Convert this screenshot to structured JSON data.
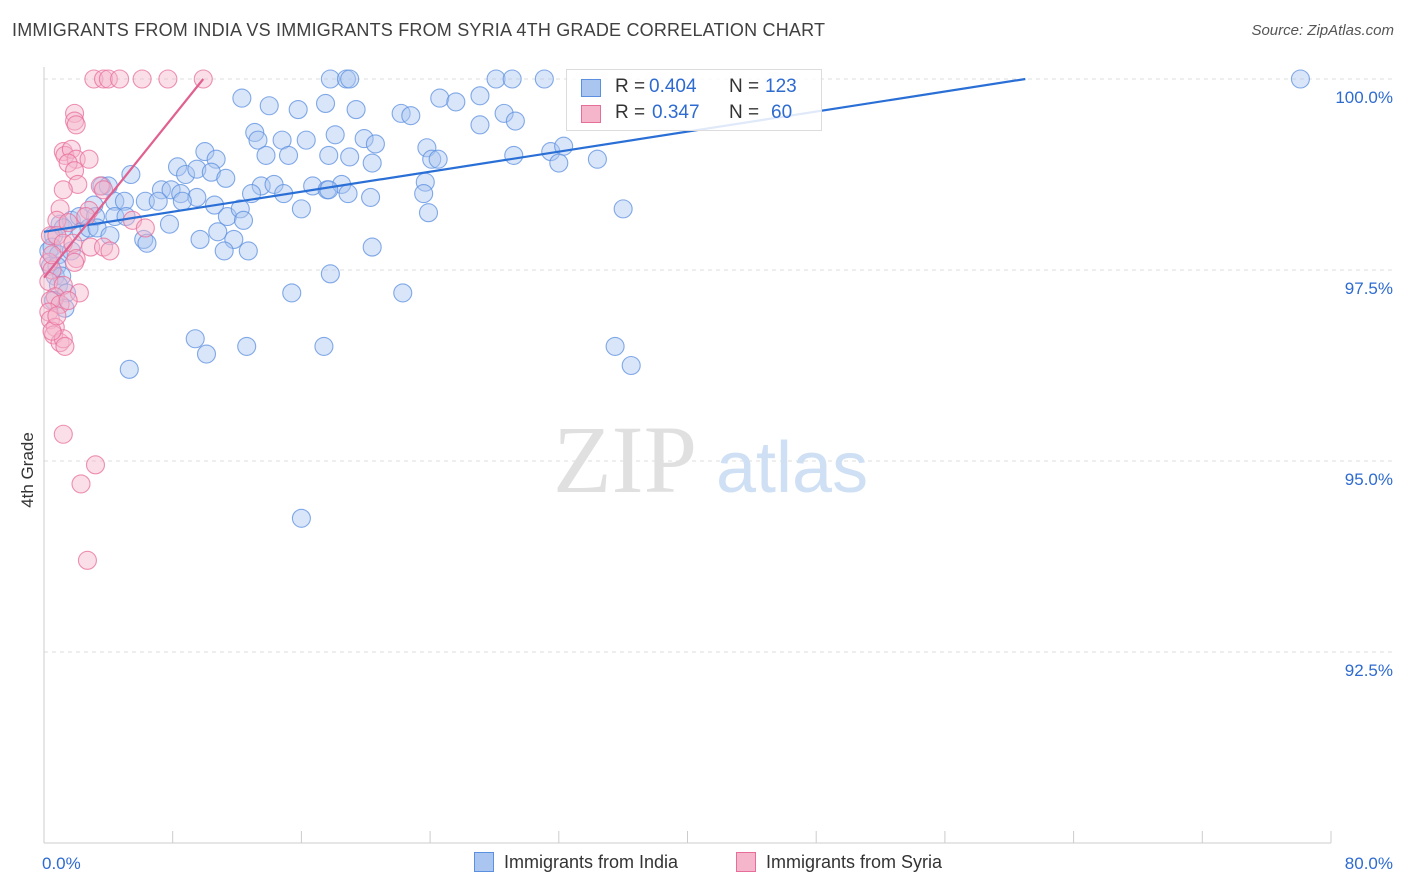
{
  "title": "IMMIGRANTS FROM INDIA VS IMMIGRANTS FROM SYRIA 4TH GRADE CORRELATION CHART",
  "source": "Source: ZipAtlas.com",
  "watermark": {
    "zip": "ZIP",
    "atlas": "atlas"
  },
  "colors": {
    "india": "#5b8fe0",
    "india_fill": "#aac6f0",
    "syria": "#e86e9a",
    "syria_fill": "#f5b6cc",
    "axis_label": "#2e6bd0",
    "grid": "#dddddd"
  },
  "legend": {
    "india": {
      "r_label": "R =",
      "r_value": "0.404",
      "n_label": "N =",
      "n_value": "123"
    },
    "syria": {
      "r_label": "R =",
      "r_value": "0.347",
      "n_label": "N =",
      "n_value": "60"
    }
  },
  "bottom_legend": {
    "india": "Immigrants from India",
    "syria": "Immigrants from Syria"
  },
  "chart_data": {
    "type": "scatter",
    "title": "IMMIGRANTS FROM INDIA VS IMMIGRANTS FROM SYRIA 4TH GRADE CORRELATION CHART",
    "xlabel": "",
    "ylabel": "4th Grade",
    "xlim": [
      0,
      80
    ],
    "ylim": [
      90.2,
      100.3
    ],
    "x_tick_labels": [
      "0.0%",
      "80.0%"
    ],
    "y_ticks": [
      92.5,
      95.0,
      97.5,
      100.0
    ],
    "y_tick_labels": [
      "92.5%",
      "95.0%",
      "97.5%",
      "100.0%"
    ],
    "grid": true,
    "series": [
      {
        "name": "Immigrants from India",
        "trend": [
          [
            0.0,
            98.0
          ],
          [
            61.0,
            100.0
          ]
        ],
        "points": [
          [
            17.8,
            100.0
          ],
          [
            18.8,
            100.0
          ],
          [
            19.0,
            100.0
          ],
          [
            28.1,
            100.0
          ],
          [
            29.1,
            100.0
          ],
          [
            31.1,
            100.0
          ],
          [
            78.1,
            100.0
          ],
          [
            12.3,
            99.75
          ],
          [
            14.0,
            99.65
          ],
          [
            15.8,
            99.6
          ],
          [
            17.5,
            99.68
          ],
          [
            19.4,
            99.6
          ],
          [
            22.2,
            99.55
          ],
          [
            22.8,
            99.52
          ],
          [
            24.6,
            99.75
          ],
          [
            25.6,
            99.7
          ],
          [
            27.1,
            99.78
          ],
          [
            28.6,
            99.55
          ],
          [
            29.3,
            99.45
          ],
          [
            27.1,
            99.4
          ],
          [
            13.1,
            99.3
          ],
          [
            13.3,
            99.2
          ],
          [
            14.8,
            99.2
          ],
          [
            16.3,
            99.2
          ],
          [
            18.1,
            99.27
          ],
          [
            19.9,
            99.22
          ],
          [
            20.6,
            99.15
          ],
          [
            23.8,
            99.1
          ],
          [
            29.2,
            99.0
          ],
          [
            31.5,
            99.05
          ],
          [
            32.3,
            99.12
          ],
          [
            34.4,
            98.95
          ],
          [
            10.0,
            99.05
          ],
          [
            10.7,
            98.95
          ],
          [
            13.8,
            99.0
          ],
          [
            15.2,
            99.0
          ],
          [
            17.7,
            99.0
          ],
          [
            19.0,
            98.98
          ],
          [
            20.4,
            98.9
          ],
          [
            24.1,
            98.95
          ],
          [
            24.5,
            98.95
          ],
          [
            32.0,
            98.9
          ],
          [
            5.4,
            98.75
          ],
          [
            8.3,
            98.85
          ],
          [
            8.8,
            98.75
          ],
          [
            9.5,
            98.82
          ],
          [
            10.4,
            98.78
          ],
          [
            11.3,
            98.7
          ],
          [
            13.5,
            98.6
          ],
          [
            14.3,
            98.62
          ],
          [
            16.7,
            98.6
          ],
          [
            17.6,
            98.55
          ],
          [
            18.5,
            98.62
          ],
          [
            23.7,
            98.65
          ],
          [
            3.6,
            98.6
          ],
          [
            4.0,
            98.6
          ],
          [
            7.3,
            98.55
          ],
          [
            7.9,
            98.55
          ],
          [
            8.5,
            98.5
          ],
          [
            9.5,
            98.45
          ],
          [
            12.9,
            98.5
          ],
          [
            14.9,
            98.5
          ],
          [
            17.7,
            98.55
          ],
          [
            18.9,
            98.5
          ],
          [
            20.3,
            98.45
          ],
          [
            23.6,
            98.5
          ],
          [
            3.1,
            98.35
          ],
          [
            4.4,
            98.4
          ],
          [
            5.0,
            98.4
          ],
          [
            6.3,
            98.4
          ],
          [
            7.1,
            98.4
          ],
          [
            8.6,
            98.4
          ],
          [
            10.6,
            98.35
          ],
          [
            11.4,
            98.2
          ],
          [
            12.2,
            98.3
          ],
          [
            16.0,
            98.3
          ],
          [
            23.9,
            98.25
          ],
          [
            36.0,
            98.3
          ],
          [
            1.0,
            98.1
          ],
          [
            1.7,
            98.15
          ],
          [
            2.2,
            98.2
          ],
          [
            3.2,
            98.2
          ],
          [
            4.4,
            98.2
          ],
          [
            5.1,
            98.2
          ],
          [
            7.8,
            98.1
          ],
          [
            12.4,
            98.15
          ],
          [
            0.6,
            97.95
          ],
          [
            1.2,
            98.05
          ],
          [
            2.3,
            98.0
          ],
          [
            2.8,
            98.05
          ],
          [
            3.3,
            98.05
          ],
          [
            4.1,
            97.95
          ],
          [
            6.2,
            97.9
          ],
          [
            9.7,
            97.9
          ],
          [
            10.8,
            98.0
          ],
          [
            11.8,
            97.9
          ],
          [
            0.3,
            97.75
          ],
          [
            0.5,
            97.8
          ],
          [
            0.9,
            97.7
          ],
          [
            1.7,
            97.75
          ],
          [
            6.4,
            97.85
          ],
          [
            11.2,
            97.75
          ],
          [
            12.7,
            97.75
          ],
          [
            20.4,
            97.8
          ],
          [
            0.4,
            97.55
          ],
          [
            0.8,
            97.55
          ],
          [
            0.7,
            97.42
          ],
          [
            1.1,
            97.42
          ],
          [
            0.9,
            97.3
          ],
          [
            1.4,
            97.2
          ],
          [
            15.4,
            97.2
          ],
          [
            17.8,
            97.45
          ],
          [
            22.3,
            97.2
          ],
          [
            0.6,
            97.1
          ],
          [
            1.3,
            97.0
          ],
          [
            9.4,
            96.6
          ],
          [
            10.1,
            96.4
          ],
          [
            12.6,
            96.5
          ],
          [
            17.4,
            96.5
          ],
          [
            35.5,
            96.5
          ],
          [
            36.5,
            96.25
          ],
          [
            5.3,
            96.2
          ],
          [
            16.0,
            94.25
          ]
        ]
      },
      {
        "name": "Immigrants from Syria",
        "trend": [
          [
            0.0,
            97.4
          ],
          [
            9.9,
            100.0
          ]
        ],
        "points": [
          [
            3.1,
            100.0
          ],
          [
            3.7,
            100.0
          ],
          [
            4.0,
            100.0
          ],
          [
            4.7,
            100.0
          ],
          [
            6.1,
            100.0
          ],
          [
            7.7,
            100.0
          ],
          [
            9.9,
            100.0
          ],
          [
            1.9,
            99.55
          ],
          [
            1.9,
            99.45
          ],
          [
            2.0,
            99.4
          ],
          [
            1.2,
            99.05
          ],
          [
            1.3,
            99.0
          ],
          [
            1.7,
            99.08
          ],
          [
            2.0,
            98.95
          ],
          [
            2.8,
            98.95
          ],
          [
            1.5,
            98.9
          ],
          [
            1.9,
            98.8
          ],
          [
            2.1,
            98.62
          ],
          [
            1.2,
            98.55
          ],
          [
            3.5,
            98.6
          ],
          [
            3.7,
            98.55
          ],
          [
            1.0,
            98.3
          ],
          [
            2.8,
            98.28
          ],
          [
            0.8,
            98.15
          ],
          [
            1.5,
            98.12
          ],
          [
            2.6,
            98.2
          ],
          [
            5.5,
            98.15
          ],
          [
            6.3,
            98.05
          ],
          [
            0.4,
            97.95
          ],
          [
            0.8,
            97.95
          ],
          [
            1.2,
            97.85
          ],
          [
            1.8,
            97.85
          ],
          [
            2.9,
            97.8
          ],
          [
            3.7,
            97.8
          ],
          [
            4.1,
            97.75
          ],
          [
            2.0,
            97.65
          ],
          [
            0.3,
            97.6
          ],
          [
            0.5,
            97.5
          ],
          [
            0.3,
            97.35
          ],
          [
            1.2,
            97.3
          ],
          [
            2.2,
            97.2
          ],
          [
            0.7,
            97.15
          ],
          [
            0.4,
            97.1
          ],
          [
            1.0,
            97.05
          ],
          [
            1.5,
            97.1
          ],
          [
            0.3,
            96.95
          ],
          [
            0.4,
            96.85
          ],
          [
            0.7,
            96.75
          ],
          [
            0.6,
            96.65
          ],
          [
            1.0,
            96.55
          ],
          [
            1.2,
            96.6
          ],
          [
            1.3,
            96.5
          ],
          [
            0.5,
            96.7
          ],
          [
            0.8,
            96.9
          ],
          [
            1.2,
            95.35
          ],
          [
            3.2,
            94.95
          ],
          [
            2.3,
            94.7
          ],
          [
            2.7,
            93.7
          ],
          [
            0.5,
            97.7
          ],
          [
            1.9,
            97.6
          ]
        ]
      }
    ]
  }
}
